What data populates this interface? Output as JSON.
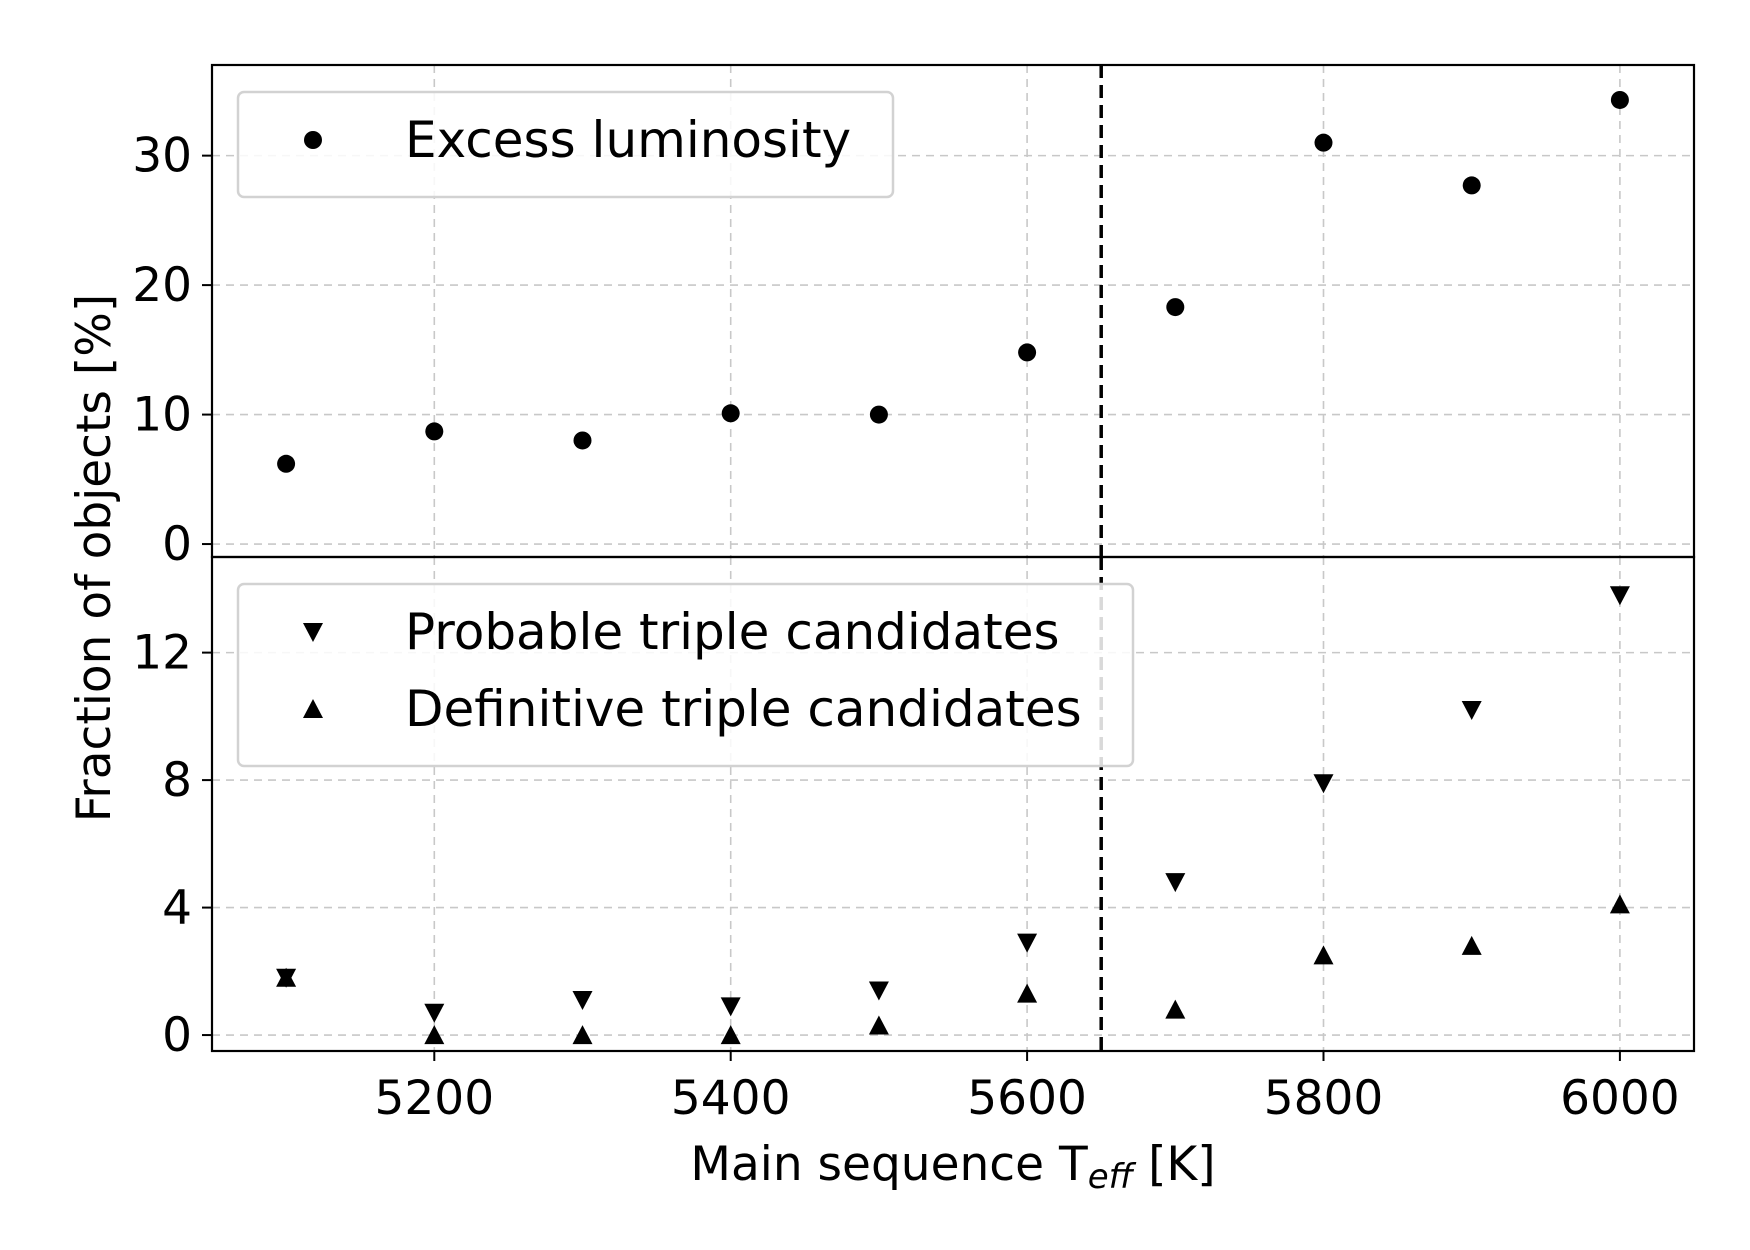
{
  "chart_data": [
    {
      "type": "scatter",
      "panel": "top",
      "xlabel": "Main sequence T",
      "xlabel_subscript": "eff",
      "xlabel_suffix": " [K]",
      "ylabel": "Fraction of objects [%]",
      "xlim": [
        5050,
        6050
      ],
      "ylim": [
        -1,
        37
      ],
      "xticks": [
        5200,
        5400,
        5600,
        5800,
        6000
      ],
      "yticks": [
        0,
        10,
        20,
        30
      ],
      "grid": true,
      "vline_x": 5650,
      "legend_position": "top-left",
      "series": [
        {
          "name": "Excess luminosity",
          "marker": "circle",
          "color": "#000000",
          "x": [
            5100,
            5200,
            5300,
            5400,
            5500,
            5600,
            5700,
            5800,
            5900,
            6000
          ],
          "y": [
            6.2,
            8.7,
            8.0,
            10.1,
            10.0,
            14.8,
            18.3,
            31.0,
            27.7,
            34.3
          ]
        }
      ]
    },
    {
      "type": "scatter",
      "panel": "bottom",
      "xlim": [
        5050,
        6050
      ],
      "ylim": [
        -0.5,
        15.0
      ],
      "xticks": [
        5200,
        5400,
        5600,
        5800,
        6000
      ],
      "yticks": [
        0,
        4,
        8,
        12
      ],
      "grid": true,
      "vline_x": 5650,
      "legend_position": "top-left",
      "series": [
        {
          "name": "Probable triple candidates",
          "marker": "triangle-down",
          "color": "#000000",
          "x": [
            5100,
            5200,
            5300,
            5400,
            5500,
            5600,
            5700,
            5800,
            5900,
            6000
          ],
          "y": [
            1.8,
            0.7,
            1.1,
            0.9,
            1.4,
            2.9,
            4.8,
            7.9,
            10.2,
            13.8
          ]
        },
        {
          "name": "Definitive triple candidates",
          "marker": "triangle-up",
          "color": "#000000",
          "x": [
            5100,
            5200,
            5300,
            5400,
            5500,
            5600,
            5700,
            5800,
            5900,
            6000
          ],
          "y": [
            1.8,
            0.0,
            0.0,
            0.0,
            0.3,
            1.3,
            0.8,
            2.5,
            2.8,
            4.1
          ]
        }
      ]
    }
  ]
}
